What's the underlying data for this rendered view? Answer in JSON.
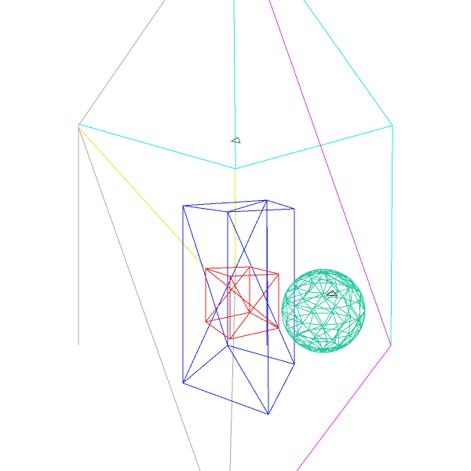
{
  "viewport": {
    "background": "#ffffff"
  },
  "colors": {
    "camera_gray": "#a9a9a9",
    "camera_cyan": "#22e4e4",
    "camera_magenta": "#d43be0",
    "axis_yellow": "#e6e61e",
    "box_blue": "#1f2bd0",
    "cube_red": "#e02020",
    "sphere_teal": "#28c8a0",
    "marker": "#606060"
  },
  "objects": [
    {
      "name": "camera-frustum-gray",
      "color_key": "camera_gray"
    },
    {
      "name": "camera-frustum-cyan",
      "color_key": "camera_cyan"
    },
    {
      "name": "camera-frustum-magenta",
      "color_key": "camera_magenta"
    },
    {
      "name": "view-axis-yellow",
      "color_key": "axis_yellow"
    },
    {
      "name": "wireframe-box-blue",
      "color_key": "box_blue"
    },
    {
      "name": "wireframe-cube-red",
      "color_key": "cube_red"
    },
    {
      "name": "wireframe-sphere-teal",
      "color_key": "sphere_teal"
    }
  ]
}
